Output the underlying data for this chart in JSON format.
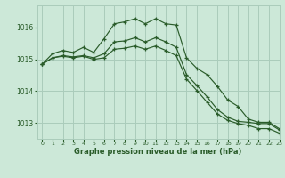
{
  "title": "Graphe pression niveau de la mer (hPa)",
  "background_color": "#cce8d8",
  "grid_color": "#aaccbb",
  "line_color": "#2a5c2a",
  "xlim": [
    -0.5,
    23
  ],
  "ylim": [
    1012.5,
    1016.7
  ],
  "yticks": [
    1013,
    1014,
    1015,
    1016
  ],
  "xticks": [
    0,
    1,
    2,
    3,
    4,
    5,
    6,
    7,
    8,
    9,
    10,
    11,
    12,
    13,
    14,
    15,
    16,
    17,
    18,
    19,
    20,
    21,
    22,
    23
  ],
  "series1": [
    1014.85,
    1015.18,
    1015.28,
    1015.22,
    1015.38,
    1015.22,
    1015.65,
    1016.12,
    1016.18,
    1016.28,
    1016.12,
    1016.28,
    1016.12,
    1016.08,
    1015.05,
    1014.72,
    1014.52,
    1014.15,
    1013.72,
    1013.52,
    1013.12,
    1013.02,
    1013.02,
    1012.82
  ],
  "series2": [
    1014.85,
    1015.05,
    1015.12,
    1015.08,
    1015.12,
    1015.05,
    1015.18,
    1015.55,
    1015.58,
    1015.68,
    1015.55,
    1015.68,
    1015.55,
    1015.38,
    1014.52,
    1014.18,
    1013.82,
    1013.42,
    1013.18,
    1013.05,
    1013.02,
    1012.98,
    1012.98,
    1012.78
  ],
  "series3": [
    1014.85,
    1015.05,
    1015.1,
    1015.05,
    1015.1,
    1015.0,
    1015.05,
    1015.32,
    1015.35,
    1015.42,
    1015.32,
    1015.42,
    1015.28,
    1015.12,
    1014.38,
    1014.02,
    1013.65,
    1013.28,
    1013.08,
    1012.98,
    1012.92,
    1012.82,
    1012.82,
    1012.68
  ]
}
